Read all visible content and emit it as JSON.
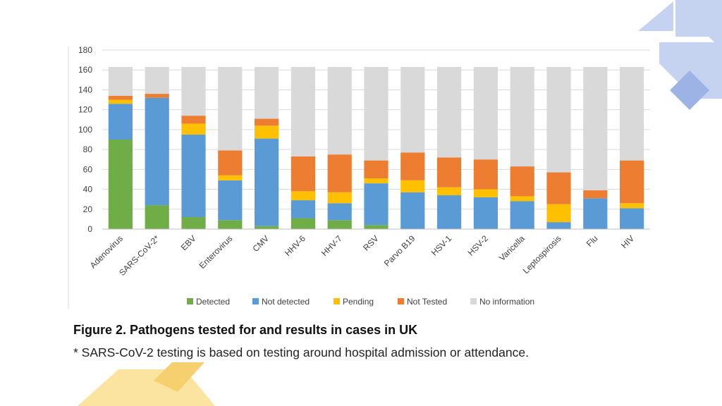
{
  "slide": {
    "figure_title": "Figure 2.  Pathogens tested for and results in cases in UK",
    "figure_note": "* SARS-CoV-2 testing is based on testing around hospital admission or attendance.",
    "accent_blue": "#8fa9e0",
    "accent_yellow": "#f9d46b"
  },
  "chart_data": {
    "type": "bar",
    "stacked": true,
    "title": "",
    "xlabel": "",
    "ylabel": "",
    "ylim": [
      0,
      180
    ],
    "yticks": [
      0,
      20,
      40,
      60,
      80,
      100,
      120,
      140,
      160,
      180
    ],
    "grid": true,
    "legend_position": "bottom",
    "categories": [
      "Adenovirus",
      "SARS-CoV-2*",
      "EBV",
      "Enterovirus",
      "CMV",
      "HHV-6",
      "HHV-7",
      "RSV",
      "Parvo B19",
      "HSV-1",
      "HSV-2",
      "Varicella",
      "Leptospirosis",
      "Flu",
      "HIV"
    ],
    "series": [
      {
        "name": "Detected",
        "color": "#70ad47",
        "values": [
          90,
          24,
          12,
          9,
          3,
          11,
          9,
          4,
          0,
          0,
          0,
          0,
          0,
          0,
          0
        ]
      },
      {
        "name": "Not detected",
        "color": "#5b9bd5",
        "values": [
          36,
          108,
          83,
          40,
          88,
          18,
          17,
          42,
          37,
          34,
          32,
          28,
          7,
          31,
          21
        ]
      },
      {
        "name": "Pending",
        "color": "#ffc000",
        "values": [
          4,
          0,
          11,
          5,
          13,
          9,
          11,
          5,
          12,
          8,
          8,
          5,
          18,
          0,
          5
        ]
      },
      {
        "name": "Not Tested",
        "color": "#ed7d31",
        "values": [
          4,
          4,
          8,
          25,
          7,
          35,
          38,
          18,
          28,
          30,
          30,
          30,
          32,
          8,
          43
        ]
      },
      {
        "name": "No information",
        "color": "#d9d9d9",
        "values": [
          29,
          27,
          49,
          84,
          52,
          90,
          88,
          94,
          86,
          91,
          93,
          100,
          106,
          124,
          94
        ]
      }
    ]
  }
}
